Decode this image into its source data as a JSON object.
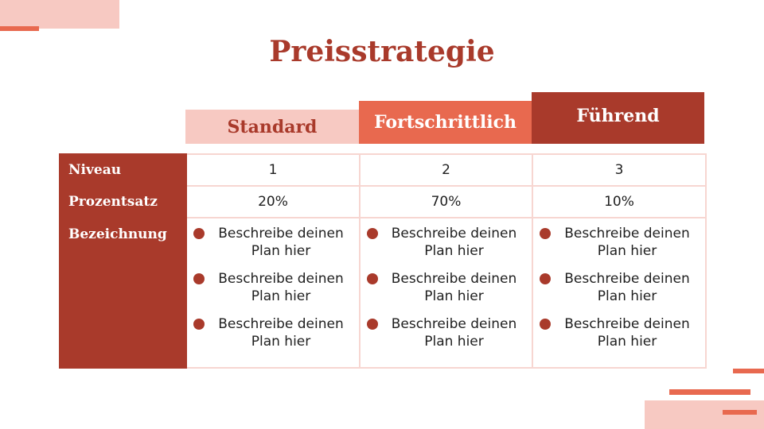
{
  "title": "Preisstrategie",
  "headers": [
    "Standard",
    "Fortschrittlich",
    "Führend"
  ],
  "rows": {
    "niveau": {
      "label": "Niveau",
      "values": [
        "1",
        "2",
        "3"
      ]
    },
    "prozentsatz": {
      "label": "Prozentsatz",
      "values": [
        "20%",
        "70%",
        "10%"
      ]
    },
    "bezeichnung": {
      "label": "Bezeichnung",
      "columns": [
        [
          "Beschreibe deinen Plan hier",
          "Beschreibe deinen Plan hier",
          "Beschreibe deinen Plan hier"
        ],
        [
          "Beschreibe deinen Plan hier",
          "Beschreibe deinen Plan hier",
          "Beschreibe deinen Plan hier"
        ],
        [
          "Beschreibe deinen Plan hier",
          "Beschreibe deinen Plan hier",
          "Beschreibe deinen Plan hier"
        ]
      ]
    }
  },
  "colors": {
    "dark_red": "#a93a2b",
    "coral": "#e8694f",
    "light_pink": "#f7c9c2",
    "border": "#f7d6d1"
  },
  "bullet_icon": "filled-circle"
}
